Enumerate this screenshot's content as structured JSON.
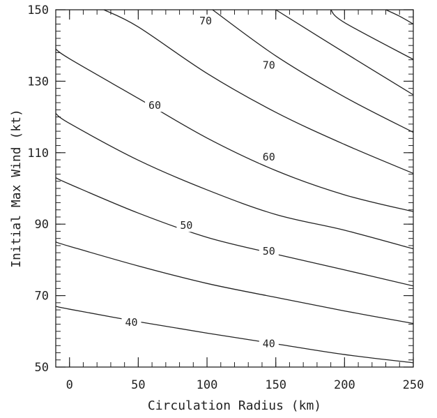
{
  "chart_data": {
    "type": "line",
    "title": "",
    "xlabel": "Circulation Radius (km)",
    "ylabel": "Initial Max Wind (kt)",
    "xlim": [
      -10,
      250
    ],
    "ylim": [
      50,
      150
    ],
    "xticks": [
      0,
      50,
      100,
      150,
      200,
      250
    ],
    "yticks": [
      50,
      70,
      90,
      110,
      130,
      150
    ],
    "grid": false,
    "series": [
      {
        "x": [
          -10,
          0,
          50,
          100,
          150,
          200,
          250
        ],
        "y": [
          67,
          66.2,
          62.7,
          59.5,
          56.5,
          53.5,
          51.2
        ]
      },
      {
        "x": [
          -10,
          0,
          50,
          100,
          150,
          200,
          250
        ],
        "y": [
          85,
          83.8,
          78.3,
          73.4,
          69.5,
          65.7,
          62.2
        ]
      },
      {
        "x": [
          -10,
          0,
          50,
          100,
          150,
          200,
          250
        ],
        "y": [
          103,
          101.2,
          93.1,
          86.3,
          81.6,
          77.2,
          72.7
        ]
      },
      {
        "x": [
          -10,
          0,
          50,
          100,
          150,
          200,
          250
        ],
        "y": [
          121,
          118.2,
          107.9,
          99.6,
          92.7,
          88.3,
          83.1
        ]
      },
      {
        "x": [
          -10,
          0,
          50,
          100,
          150,
          200,
          250
        ],
        "y": [
          139,
          136.3,
          125.2,
          114.1,
          105.0,
          98.2,
          93.5
        ]
      },
      {
        "x": [
          25,
          50,
          100,
          150,
          200,
          250
        ],
        "y": [
          150,
          145.2,
          132.2,
          121.3,
          112.3,
          104.2
        ]
      },
      {
        "x": [
          104,
          150,
          200,
          250
        ],
        "y": [
          150,
          137.1,
          125.6,
          115.7
        ]
      },
      {
        "x": [
          150,
          200,
          250
        ],
        "y": [
          150,
          138.0,
          126.2
        ]
      },
      {
        "x": [
          190,
          200,
          250
        ],
        "y": [
          150,
          146.4,
          136.1
        ]
      },
      {
        "x": [
          230,
          240,
          250
        ],
        "y": [
          150,
          148.2,
          146.0
        ]
      }
    ],
    "contour_labels": [
      {
        "text": "40",
        "x": 45,
        "y": 62.5
      },
      {
        "text": "40",
        "x": 145,
        "y": 56.5
      },
      {
        "text": "50",
        "x": 85,
        "y": 89.6
      },
      {
        "text": "50",
        "x": 145,
        "y": 82.4
      },
      {
        "text": "60",
        "x": 62,
        "y": 123.2
      },
      {
        "text": "60",
        "x": 145,
        "y": 108.8
      },
      {
        "text": "70",
        "x": 145,
        "y": 134.5
      },
      {
        "text": "70",
        "x": 99,
        "y": 146.9
      }
    ]
  }
}
